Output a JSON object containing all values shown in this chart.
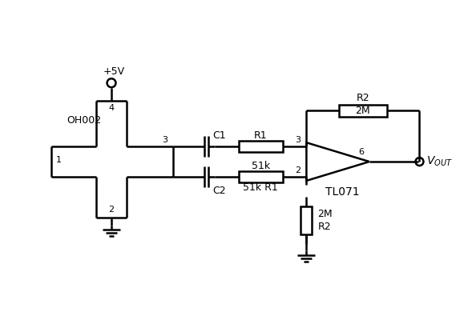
{
  "bg_color": "#ffffff",
  "line_color": "#000000",
  "line_width": 1.8,
  "font_size": 9,
  "components": {
    "oh002_label": "OH002",
    "vcc_label": "+5V",
    "c1_label": "C1",
    "c2_label": "C2",
    "r1_top_label": "R1",
    "r1_bot_val": "51k",
    "r1_bot_label": "51k R1",
    "r2_top_label": "R2",
    "r2_top_val": "2M",
    "r2_bot_val": "2M",
    "r2_bot_label": "R2",
    "tl071_label": "TL071",
    "vout_label": "$V_{OUT}$",
    "pin1": "1",
    "pin2": "2",
    "pin3": "3",
    "pin4": "4",
    "pin6": "6"
  }
}
